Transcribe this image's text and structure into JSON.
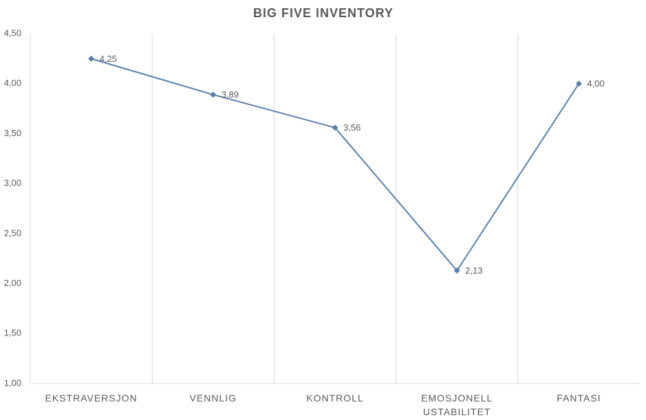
{
  "chart_data": {
    "type": "line",
    "title": "BIG FIVE INVENTORY",
    "categories": [
      "EKSTRAVERSJON",
      "VENNLIG",
      "KONTROLL",
      "EMOSJONELL\nUSTABILITET",
      "FANTASI"
    ],
    "values": [
      4.25,
      3.89,
      3.56,
      2.13,
      4.0
    ],
    "value_labels": [
      "4,25",
      "3,89",
      "3,56",
      "2,13",
      "4,00"
    ],
    "color": "#5a7fa8",
    "ylim": [
      1.0,
      4.5
    ],
    "yticks": [
      {
        "value": 1.0,
        "label": "1,00"
      },
      {
        "value": 1.5,
        "label": "1,50"
      },
      {
        "value": 2.0,
        "label": "2,00"
      },
      {
        "value": 2.5,
        "label": "2,50"
      },
      {
        "value": 3.0,
        "label": "3,00"
      },
      {
        "value": 3.5,
        "label": "3,50"
      },
      {
        "value": 4.0,
        "label": "4,00"
      },
      {
        "value": 4.5,
        "label": "4,50"
      }
    ]
  }
}
